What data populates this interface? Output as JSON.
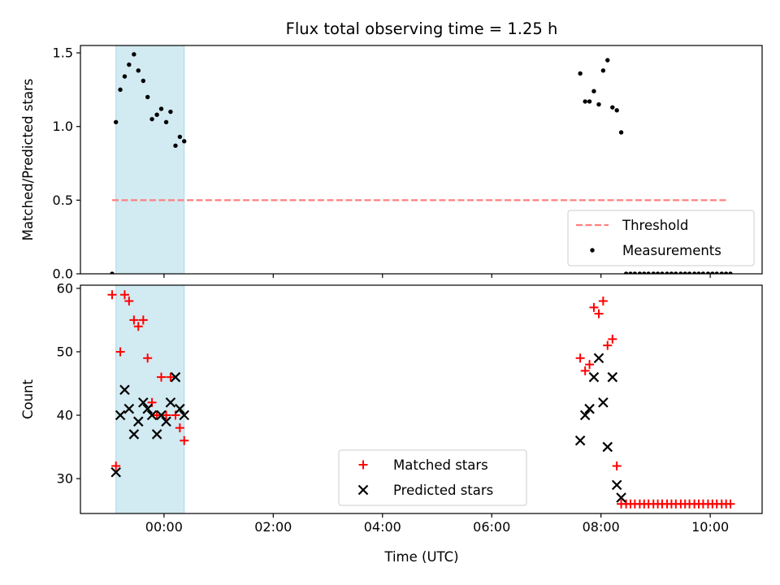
{
  "chart_data": {
    "title": "Flux total observing time = 1.25 h",
    "xlabel": "Time (UTC)",
    "x_unit": "hours relative to 00:00 UTC",
    "xlim": [
      -1.53,
      10.95
    ],
    "xticks": [
      0,
      2,
      4,
      6,
      8,
      10
    ],
    "xtick_labels": [
      "00:00",
      "02:00",
      "04:00",
      "06:00",
      "08:00",
      "10:00"
    ],
    "shaded_span": {
      "x": [
        -0.88,
        0.37
      ],
      "color": "#add8e6"
    },
    "panels": [
      {
        "type": "scatter",
        "ylabel": "Matched/Predicted stars",
        "ylim": [
          0,
          1.55
        ],
        "yticks": [
          0.0,
          0.5,
          1.0,
          1.5
        ],
        "ytick_labels": [
          "0.0",
          "0.5",
          "1.0",
          "1.5"
        ],
        "legend_position": "lower right",
        "threshold": {
          "name": "Threshold",
          "value": 0.5,
          "x_range": [
            -0.95,
            10.3
          ],
          "color": "#ff7f7f",
          "style": "dashed"
        },
        "series": [
          {
            "name": "Measurements",
            "marker": "dot",
            "color": "#000000",
            "points": [
              [
                -0.95,
                0.0
              ],
              [
                -0.88,
                1.03
              ],
              [
                -0.8,
                1.25
              ],
              [
                -0.72,
                1.34
              ],
              [
                -0.64,
                1.42
              ],
              [
                -0.55,
                1.49
              ],
              [
                -0.47,
                1.38
              ],
              [
                -0.38,
                1.31
              ],
              [
                -0.3,
                1.2
              ],
              [
                -0.22,
                1.05
              ],
              [
                -0.13,
                1.08
              ],
              [
                -0.05,
                1.12
              ],
              [
                0.04,
                1.03
              ],
              [
                0.12,
                1.1
              ],
              [
                0.21,
                0.87
              ],
              [
                0.29,
                0.93
              ],
              [
                0.37,
                0.9
              ],
              [
                7.62,
                1.36
              ],
              [
                7.71,
                1.17
              ],
              [
                7.79,
                1.17
              ],
              [
                7.87,
                1.24
              ],
              [
                7.96,
                1.15
              ],
              [
                8.04,
                1.38
              ],
              [
                8.12,
                1.45
              ],
              [
                8.21,
                1.13
              ],
              [
                8.29,
                1.11
              ],
              [
                8.37,
                0.96
              ],
              [
                8.46,
                0.0
              ],
              [
                8.54,
                0.0
              ],
              [
                8.62,
                0.0
              ],
              [
                8.71,
                0.0
              ],
              [
                8.79,
                0.0
              ],
              [
                8.87,
                0.0
              ],
              [
                8.96,
                0.0
              ],
              [
                9.04,
                0.0
              ],
              [
                9.12,
                0.0
              ],
              [
                9.21,
                0.0
              ],
              [
                9.29,
                0.0
              ],
              [
                9.37,
                0.0
              ],
              [
                9.46,
                0.0
              ],
              [
                9.54,
                0.0
              ],
              [
                9.62,
                0.0
              ],
              [
                9.71,
                0.0
              ],
              [
                9.79,
                0.0
              ],
              [
                9.87,
                0.0
              ],
              [
                9.96,
                0.0
              ],
              [
                10.04,
                0.0
              ],
              [
                10.12,
                0.0
              ],
              [
                10.21,
                0.0
              ],
              [
                10.29,
                0.0
              ],
              [
                10.37,
                0.0
              ]
            ]
          }
        ]
      },
      {
        "type": "scatter",
        "ylabel": "Count",
        "ylim": [
          24.5,
          60.5
        ],
        "yticks": [
          30,
          40,
          50,
          60
        ],
        "ytick_labels": [
          "30",
          "40",
          "50",
          "60"
        ],
        "legend_position": "lower center",
        "series": [
          {
            "name": "Matched stars",
            "marker": "plus",
            "color": "#ff0000",
            "points": [
              [
                -0.95,
                59
              ],
              [
                -0.88,
                32
              ],
              [
                -0.8,
                50
              ],
              [
                -0.72,
                59
              ],
              [
                -0.64,
                58
              ],
              [
                -0.55,
                55
              ],
              [
                -0.47,
                54
              ],
              [
                -0.38,
                55
              ],
              [
                -0.3,
                49
              ],
              [
                -0.22,
                42
              ],
              [
                -0.13,
                40
              ],
              [
                -0.05,
                46
              ],
              [
                0.04,
                40
              ],
              [
                0.12,
                46
              ],
              [
                0.21,
                40
              ],
              [
                0.29,
                38
              ],
              [
                0.37,
                36
              ],
              [
                7.62,
                49
              ],
              [
                7.71,
                47
              ],
              [
                7.79,
                48
              ],
              [
                7.87,
                57
              ],
              [
                7.96,
                56
              ],
              [
                8.04,
                58
              ],
              [
                8.12,
                51
              ],
              [
                8.21,
                52
              ],
              [
                8.29,
                32
              ],
              [
                8.37,
                26
              ],
              [
                8.46,
                26
              ],
              [
                8.54,
                26
              ],
              [
                8.62,
                26
              ],
              [
                8.71,
                26
              ],
              [
                8.79,
                26
              ],
              [
                8.87,
                26
              ],
              [
                8.96,
                26
              ],
              [
                9.04,
                26
              ],
              [
                9.12,
                26
              ],
              [
                9.21,
                26
              ],
              [
                9.29,
                26
              ],
              [
                9.37,
                26
              ],
              [
                9.46,
                26
              ],
              [
                9.54,
                26
              ],
              [
                9.62,
                26
              ],
              [
                9.71,
                26
              ],
              [
                9.79,
                26
              ],
              [
                9.87,
                26
              ],
              [
                9.96,
                26
              ],
              [
                10.04,
                26
              ],
              [
                10.12,
                26
              ],
              [
                10.21,
                26
              ],
              [
                10.29,
                26
              ],
              [
                10.37,
                26
              ]
            ]
          },
          {
            "name": "Predicted stars",
            "marker": "x",
            "color": "#000000",
            "points": [
              [
                -0.88,
                31
              ],
              [
                -0.8,
                40
              ],
              [
                -0.72,
                44
              ],
              [
                -0.64,
                41
              ],
              [
                -0.55,
                37
              ],
              [
                -0.47,
                39
              ],
              [
                -0.38,
                42
              ],
              [
                -0.3,
                41
              ],
              [
                -0.22,
                40
              ],
              [
                -0.13,
                37
              ],
              [
                -0.05,
                40
              ],
              [
                0.04,
                39
              ],
              [
                0.12,
                42
              ],
              [
                0.21,
                46
              ],
              [
                0.29,
                41
              ],
              [
                0.37,
                40
              ],
              [
                7.62,
                36
              ],
              [
                7.71,
                40
              ],
              [
                7.79,
                41
              ],
              [
                7.87,
                46
              ],
              [
                7.96,
                49
              ],
              [
                8.04,
                42
              ],
              [
                8.12,
                35
              ],
              [
                8.21,
                46
              ],
              [
                8.29,
                29
              ],
              [
                8.37,
                27
              ]
            ]
          }
        ]
      }
    ]
  }
}
